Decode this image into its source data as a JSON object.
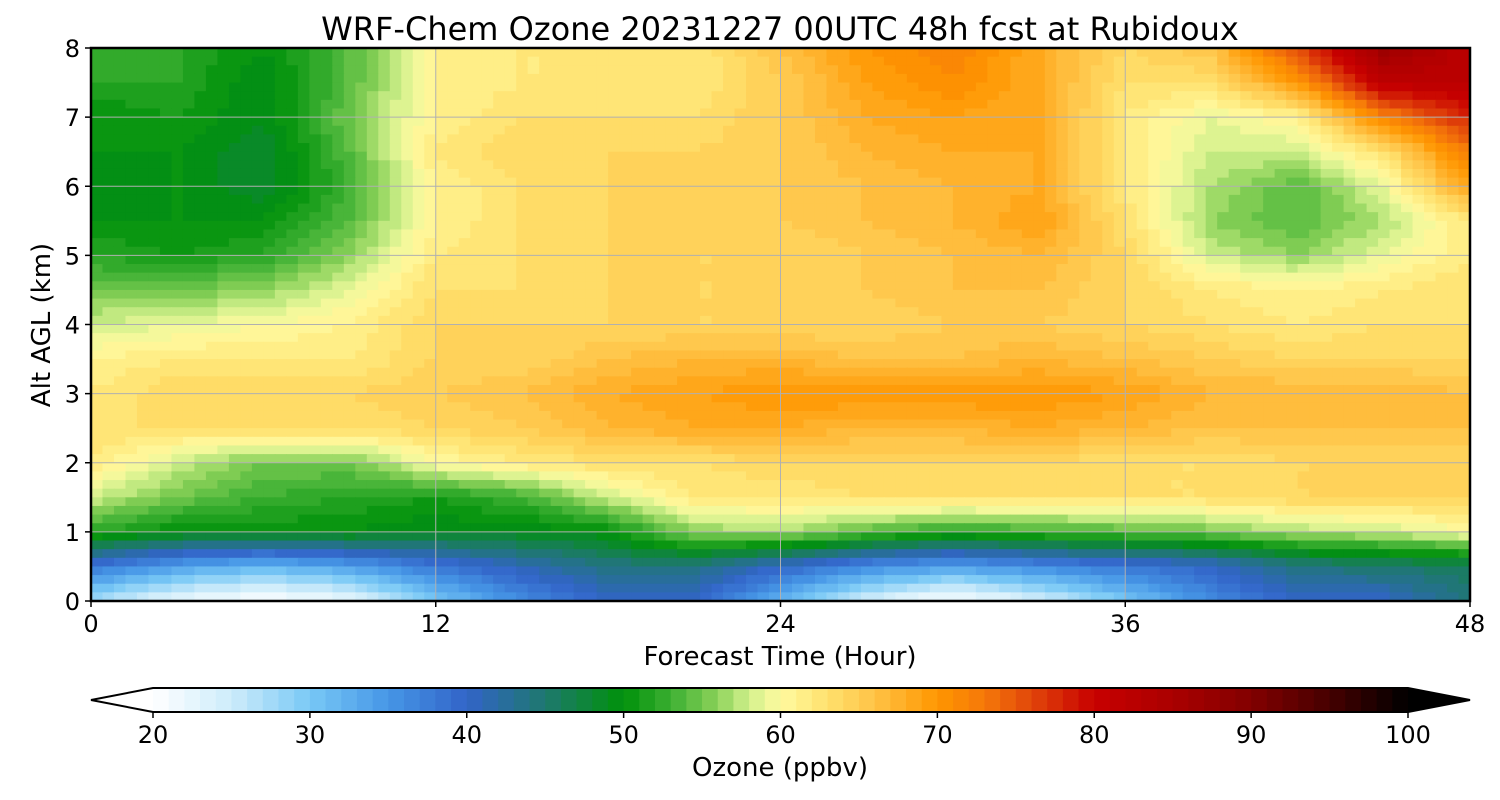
{
  "chart_data": {
    "type": "heatmap",
    "title": "WRF-Chem Ozone  20231227 00UTC 48h fcst at Rubidoux",
    "xlabel": "Forecast Time (Hour)",
    "ylabel": "Alt AGL (km)",
    "xlim": [
      0,
      48
    ],
    "ylim": [
      0,
      8
    ],
    "x_ticks": [
      0,
      12,
      24,
      36,
      48
    ],
    "y_ticks": [
      0,
      1,
      2,
      3,
      4,
      5,
      6,
      7,
      8
    ],
    "grid": true,
    "colorbar": {
      "label": "Ozone  (ppbv)",
      "min": 20,
      "max": 100,
      "ticks": [
        20,
        30,
        40,
        50,
        60,
        70,
        80,
        90,
        100
      ],
      "extend": "both",
      "levels": 80
    },
    "x": [
      0,
      3,
      6,
      9,
      12,
      15,
      18,
      21,
      24,
      27,
      30,
      33,
      36,
      39,
      42,
      45,
      48
    ],
    "y": [
      0,
      0.5,
      1,
      1.5,
      2,
      2.5,
      3,
      3.5,
      4,
      4.5,
      5,
      5.5,
      6,
      6.5,
      7,
      7.5,
      8
    ],
    "z": [
      [
        27,
        22,
        20,
        22,
        30,
        36,
        40,
        40,
        32,
        24,
        20,
        24,
        30,
        36,
        40,
        40,
        44
      ],
      [
        38,
        34,
        32,
        34,
        38,
        41,
        44,
        44,
        40,
        36,
        34,
        36,
        38,
        40,
        44,
        45,
        46
      ],
      [
        52,
        50,
        50,
        50,
        49,
        49,
        50,
        56,
        57,
        54,
        52,
        53,
        54,
        55,
        57,
        58,
        60
      ],
      [
        58,
        55,
        53,
        52,
        51,
        53,
        58,
        62,
        62,
        63,
        63,
        63,
        63,
        63,
        64,
        64,
        64
      ],
      [
        62,
        58,
        55,
        55,
        60,
        62,
        63,
        63,
        64,
        64,
        64,
        64,
        63,
        63,
        64,
        64,
        64
      ],
      [
        63,
        63,
        63,
        63,
        64,
        65,
        67,
        68,
        68,
        67,
        67,
        68,
        67,
        66,
        66,
        66,
        66
      ],
      [
        62,
        64,
        64,
        64,
        65,
        66,
        68,
        69,
        70,
        70,
        70,
        70,
        69,
        67,
        67,
        67,
        66
      ],
      [
        61,
        62,
        62,
        62,
        64,
        64,
        66,
        67,
        67,
        66,
        66,
        67,
        66,
        65,
        64,
        64,
        64
      ],
      [
        58,
        59,
        60,
        61,
        64,
        64,
        64,
        64,
        64,
        64,
        65,
        65,
        64,
        63,
        62,
        63,
        63
      ],
      [
        55,
        55,
        56,
        59,
        63,
        63,
        64,
        64,
        64,
        65,
        66,
        66,
        64,
        62,
        61,
        62,
        63
      ],
      [
        52,
        51,
        52,
        56,
        62,
        63,
        64,
        64,
        64,
        65,
        66,
        67,
        64,
        58,
        56,
        59,
        62
      ],
      [
        50,
        50,
        50,
        54,
        61,
        63,
        64,
        64,
        65,
        66,
        67,
        69,
        63,
        56,
        54,
        57,
        62
      ],
      [
        49,
        50,
        48,
        53,
        61,
        63,
        64,
        64,
        65,
        66,
        67,
        68,
        62,
        57,
        54,
        59,
        69
      ],
      [
        50,
        50,
        48,
        54,
        62,
        64,
        64,
        64,
        65,
        67,
        68,
        68,
        62,
        58,
        58,
        63,
        73
      ],
      [
        50,
        51,
        49,
        55,
        61,
        63,
        63,
        63,
        65,
        68,
        69,
        68,
        62,
        59,
        61,
        72,
        78
      ],
      [
        52,
        52,
        49,
        54,
        61,
        62,
        62,
        62,
        65,
        69,
        71,
        68,
        63,
        63,
        70,
        82,
        82
      ],
      [
        53,
        52,
        50,
        54,
        61,
        62,
        62,
        62,
        66,
        70,
        72,
        68,
        64,
        66,
        76,
        87,
        82
      ]
    ]
  }
}
